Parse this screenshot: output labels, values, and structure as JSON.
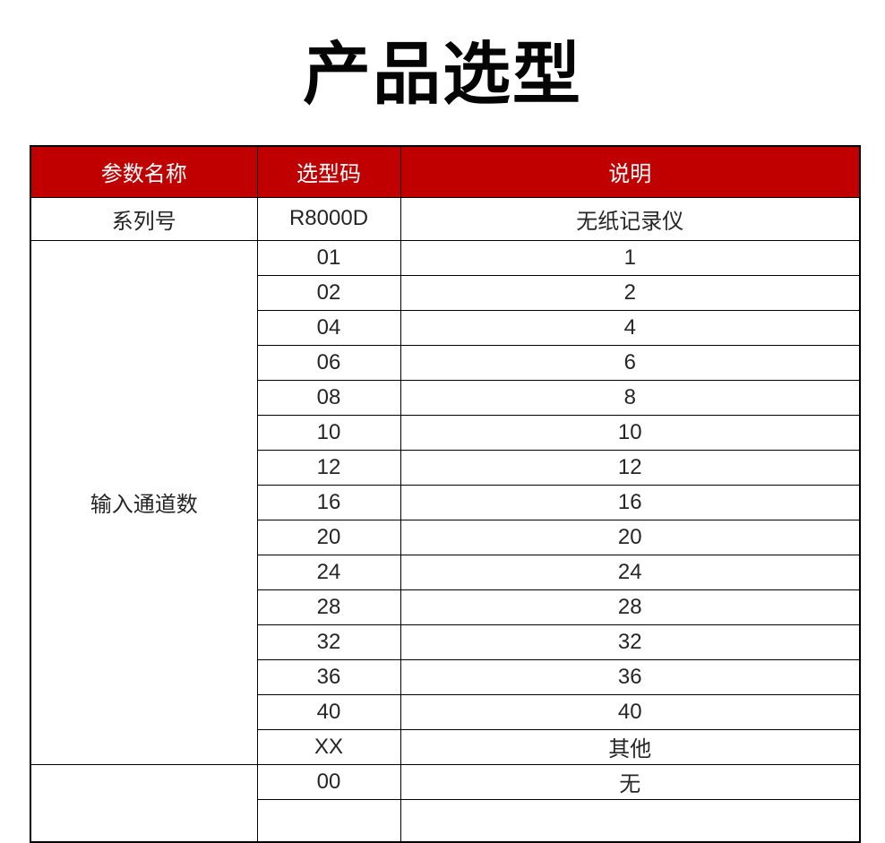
{
  "page": {
    "title": "产品选型"
  },
  "colors": {
    "header_bg": "#c00000",
    "header_text": "#ffffff",
    "body_text": "#262626",
    "grid_border": "#000000",
    "title_text": "#050505"
  },
  "table": {
    "headers": [
      {
        "label": "参数名称"
      },
      {
        "label": "选型码"
      },
      {
        "label": "说明"
      }
    ],
    "sections": [
      {
        "param": "系列号",
        "rows": [
          {
            "code": "R8000D",
            "desc": "无纸记录仪"
          }
        ]
      },
      {
        "param": "输入通道数",
        "rows": [
          {
            "code": "01",
            "desc": "1"
          },
          {
            "code": "02",
            "desc": "2"
          },
          {
            "code": "04",
            "desc": "4"
          },
          {
            "code": "06",
            "desc": "6"
          },
          {
            "code": "08",
            "desc": "8"
          },
          {
            "code": "10",
            "desc": "10"
          },
          {
            "code": "12",
            "desc": "12"
          },
          {
            "code": "16",
            "desc": "16"
          },
          {
            "code": "20",
            "desc": "20"
          },
          {
            "code": "24",
            "desc": "24"
          },
          {
            "code": "28",
            "desc": "28"
          },
          {
            "code": "32",
            "desc": "32"
          },
          {
            "code": "36",
            "desc": "36"
          },
          {
            "code": "40",
            "desc": "40"
          },
          {
            "code": "XX",
            "desc": "其他"
          }
        ]
      },
      {
        "param": "",
        "rows": [
          {
            "code": "00",
            "desc": "无"
          },
          {
            "code": "",
            "desc": ""
          }
        ]
      }
    ]
  }
}
